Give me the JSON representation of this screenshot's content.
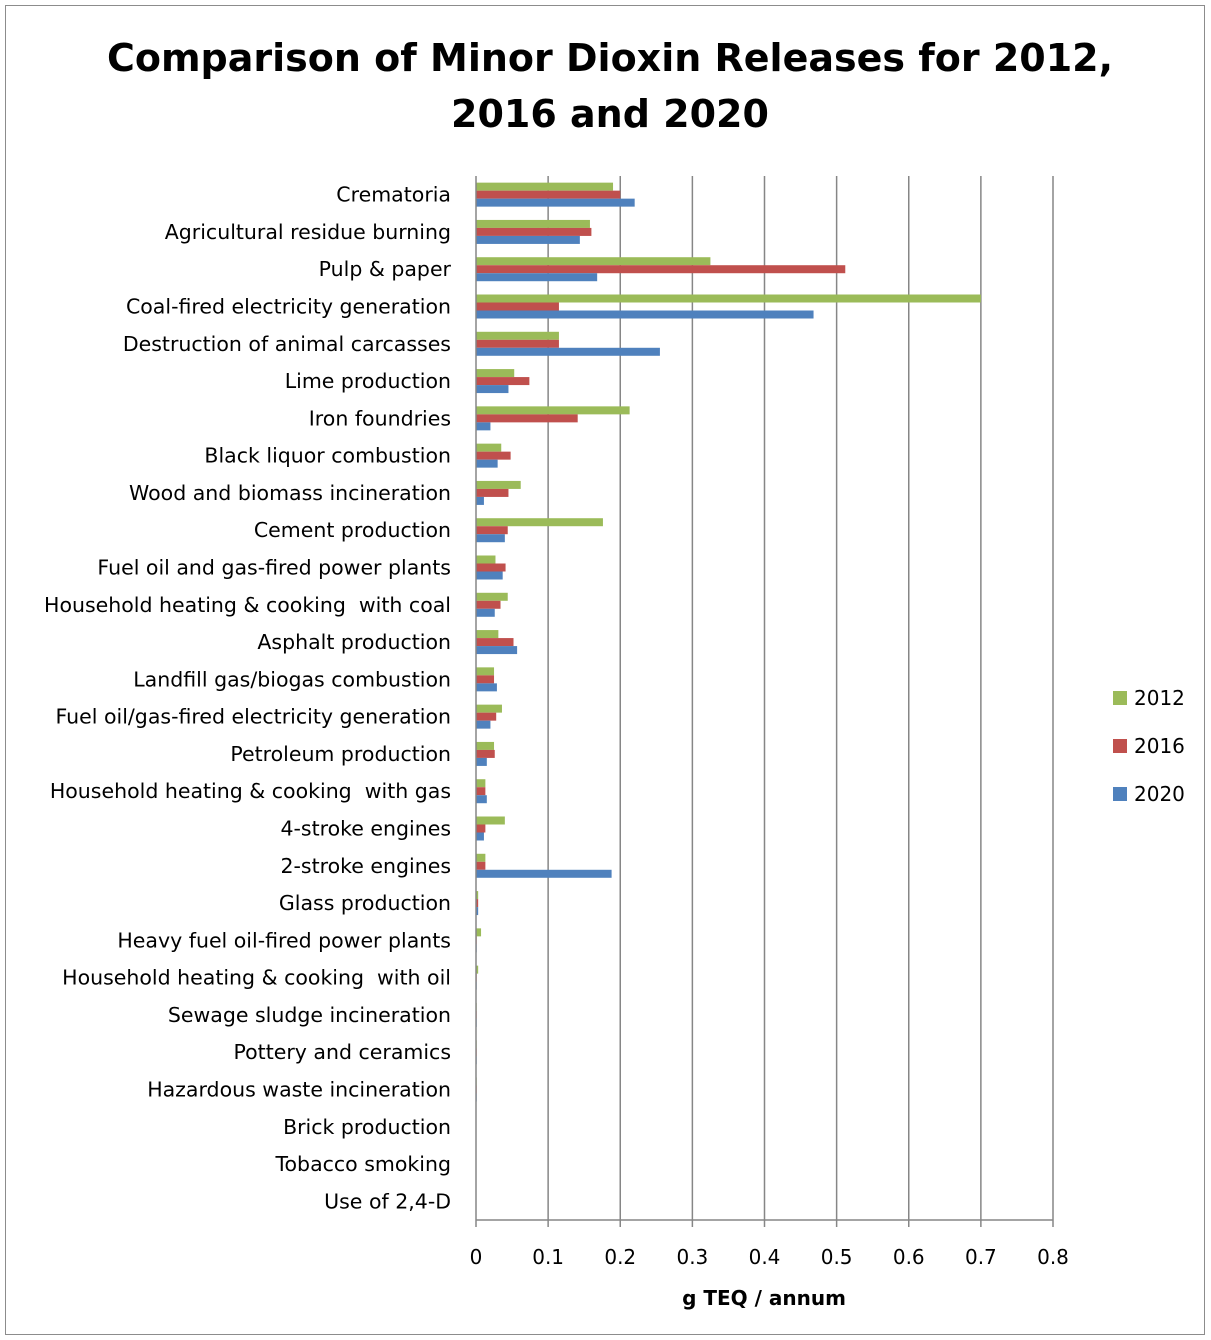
{
  "chart_data": {
    "type": "bar",
    "orientation": "horizontal",
    "title": "Comparison of Minor Dioxin Releases for 2012, 2016 and 2020",
    "xlabel": "g TEQ / annum",
    "ylabel": "",
    "xlim": [
      0,
      0.8
    ],
    "xticks": [
      "0",
      "0.1",
      "0.2",
      "0.3",
      "0.4",
      "0.5",
      "0.6",
      "0.7",
      "0.8"
    ],
    "grid": "vertical",
    "legend_position": "right",
    "categories": [
      "Crematoria",
      "Agricultural residue burning",
      "Pulp & paper",
      "Coal-fired electricity generation",
      "Destruction of animal carcasses",
      "Lime production",
      "Iron foundries",
      "Black liquor combustion",
      "Wood and biomass incineration",
      "Cement production",
      "Fuel oil and gas-fired power plants",
      "Household heating & cooking  with coal",
      "Asphalt production",
      "Landfill gas/biogas combustion",
      "Fuel oil/gas-fired electricity generation",
      "Petroleum production",
      "Household heating & cooking  with gas",
      "4-stroke engines",
      "2-stroke engines",
      "Glass production",
      "Heavy fuel oil-fired power plants",
      "Household heating & cooking  with oil",
      "Sewage sludge incineration",
      "Pottery and ceramics",
      "Hazardous waste incineration",
      "Brick production",
      "Tobacco smoking",
      "Use of 2,4-D"
    ],
    "series": [
      {
        "name": "2012",
        "color": "#9bbb59",
        "values": [
          0.19,
          0.158,
          0.325,
          0.7,
          0.115,
          0.053,
          0.213,
          0.035,
          0.062,
          0.176,
          0.027,
          0.044,
          0.031,
          0.025,
          0.036,
          0.025,
          0.013,
          0.04,
          0.013,
          0.003,
          0.007,
          0.003,
          0.001,
          0.001,
          0.001,
          0.0005,
          0.0005,
          0.0005
        ]
      },
      {
        "name": "2016",
        "color": "#c0504d",
        "values": [
          0.2,
          0.16,
          0.512,
          0.115,
          0.115,
          0.074,
          0.141,
          0.048,
          0.045,
          0.044,
          0.041,
          0.034,
          0.052,
          0.025,
          0.028,
          0.026,
          0.013,
          0.013,
          0.013,
          0.003,
          0.001,
          0.001,
          0.001,
          0.001,
          0.001,
          0.0005,
          0.0005,
          0.0005
        ]
      },
      {
        "name": "2020",
        "color": "#4f81bd",
        "values": [
          0.22,
          0.144,
          0.168,
          0.468,
          0.255,
          0.045,
          0.02,
          0.03,
          0.011,
          0.04,
          0.037,
          0.026,
          0.057,
          0.029,
          0.02,
          0.015,
          0.015,
          0.011,
          0.188,
          0.003,
          0.001,
          0.001,
          0.001,
          0.001,
          0.001,
          0.0005,
          0.0005,
          0.0005
        ]
      }
    ]
  }
}
